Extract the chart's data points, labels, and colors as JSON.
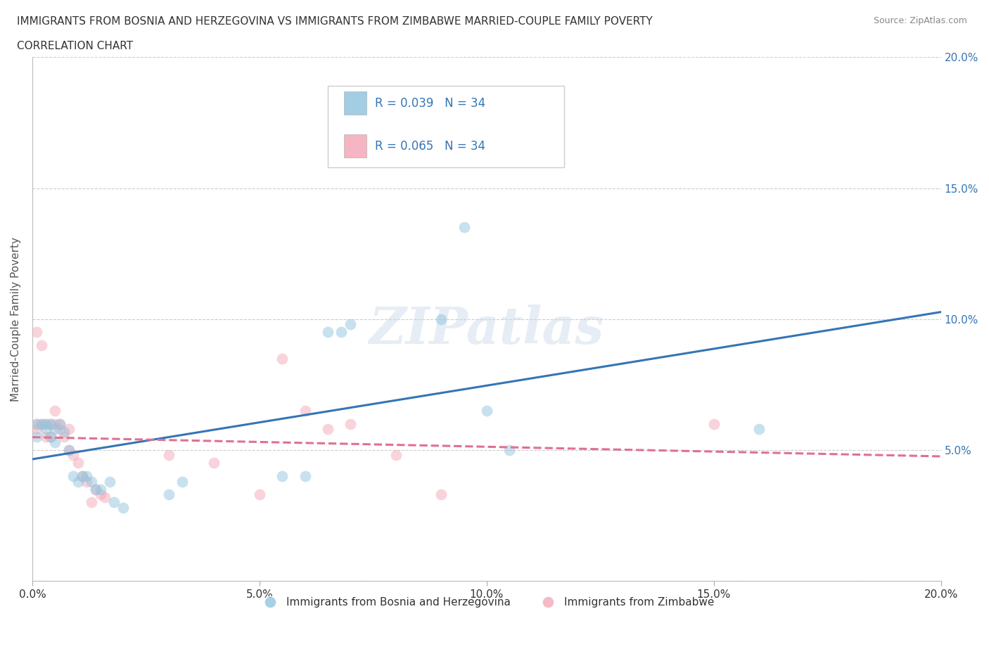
{
  "title_line1": "IMMIGRANTS FROM BOSNIA AND HERZEGOVINA VS IMMIGRANTS FROM ZIMBABWE MARRIED-COUPLE FAMILY POVERTY",
  "title_line2": "CORRELATION CHART",
  "source": "Source: ZipAtlas.com",
  "ylabel": "Married-Couple Family Poverty",
  "xlim": [
    0.0,
    0.2
  ],
  "ylim": [
    0.0,
    0.2
  ],
  "xticks": [
    0.0,
    0.05,
    0.1,
    0.15,
    0.2
  ],
  "yticks": [
    0.0,
    0.05,
    0.1,
    0.15,
    0.2
  ],
  "xticklabels": [
    "0.0%",
    "5.0%",
    "10.0%",
    "15.0%",
    "20.0%"
  ],
  "yticklabels": [
    "",
    "5.0%",
    "10.0%",
    "15.0%",
    "20.0%"
  ],
  "grid_color": "#cccccc",
  "background_color": "#ffffff",
  "watermark_text": "ZIPatlas",
  "bosnia_color": "#92c5de",
  "zimbabwe_color": "#f4a8b8",
  "bosnia_line_color": "#3575b5",
  "zimbabwe_line_color": "#e07090",
  "legend_r_bosnia": "R = 0.039",
  "legend_n_bosnia": "N = 34",
  "legend_r_zimbabwe": "R = 0.065",
  "legend_n_zimbabwe": "N = 34",
  "bosnia_scatter_x": [
    0.001,
    0.001,
    0.002,
    0.003,
    0.003,
    0.004,
    0.004,
    0.005,
    0.005,
    0.006,
    0.007,
    0.008,
    0.009,
    0.01,
    0.011,
    0.012,
    0.013,
    0.014,
    0.015,
    0.017,
    0.018,
    0.02,
    0.03,
    0.033,
    0.055,
    0.06,
    0.065,
    0.068,
    0.07,
    0.09,
    0.095,
    0.1,
    0.105,
    0.16
  ],
  "bosnia_scatter_y": [
    0.06,
    0.055,
    0.06,
    0.06,
    0.058,
    0.06,
    0.055,
    0.058,
    0.053,
    0.06,
    0.057,
    0.05,
    0.04,
    0.038,
    0.04,
    0.04,
    0.038,
    0.035,
    0.035,
    0.038,
    0.03,
    0.028,
    0.033,
    0.038,
    0.04,
    0.04,
    0.095,
    0.095,
    0.098,
    0.1,
    0.135,
    0.065,
    0.05,
    0.058
  ],
  "zimbabwe_scatter_x": [
    0.001,
    0.001,
    0.001,
    0.002,
    0.002,
    0.003,
    0.003,
    0.004,
    0.004,
    0.005,
    0.005,
    0.006,
    0.006,
    0.007,
    0.008,
    0.008,
    0.009,
    0.01,
    0.011,
    0.012,
    0.013,
    0.014,
    0.015,
    0.016,
    0.03,
    0.04,
    0.05,
    0.055,
    0.06,
    0.065,
    0.07,
    0.08,
    0.09,
    0.15
  ],
  "zimbabwe_scatter_y": [
    0.06,
    0.058,
    0.095,
    0.06,
    0.09,
    0.06,
    0.055,
    0.06,
    0.055,
    0.065,
    0.06,
    0.06,
    0.058,
    0.055,
    0.05,
    0.058,
    0.048,
    0.045,
    0.04,
    0.038,
    0.03,
    0.035,
    0.033,
    0.032,
    0.048,
    0.045,
    0.033,
    0.085,
    0.065,
    0.058,
    0.06,
    0.048,
    0.033,
    0.06
  ],
  "marker_size": 130,
  "marker_alpha": 0.5,
  "title_color": "#333333",
  "axis_label_color": "#555555",
  "tick_color": "#333333",
  "right_tick_color": "#3575b5",
  "legend_text_color": "#3575b5"
}
